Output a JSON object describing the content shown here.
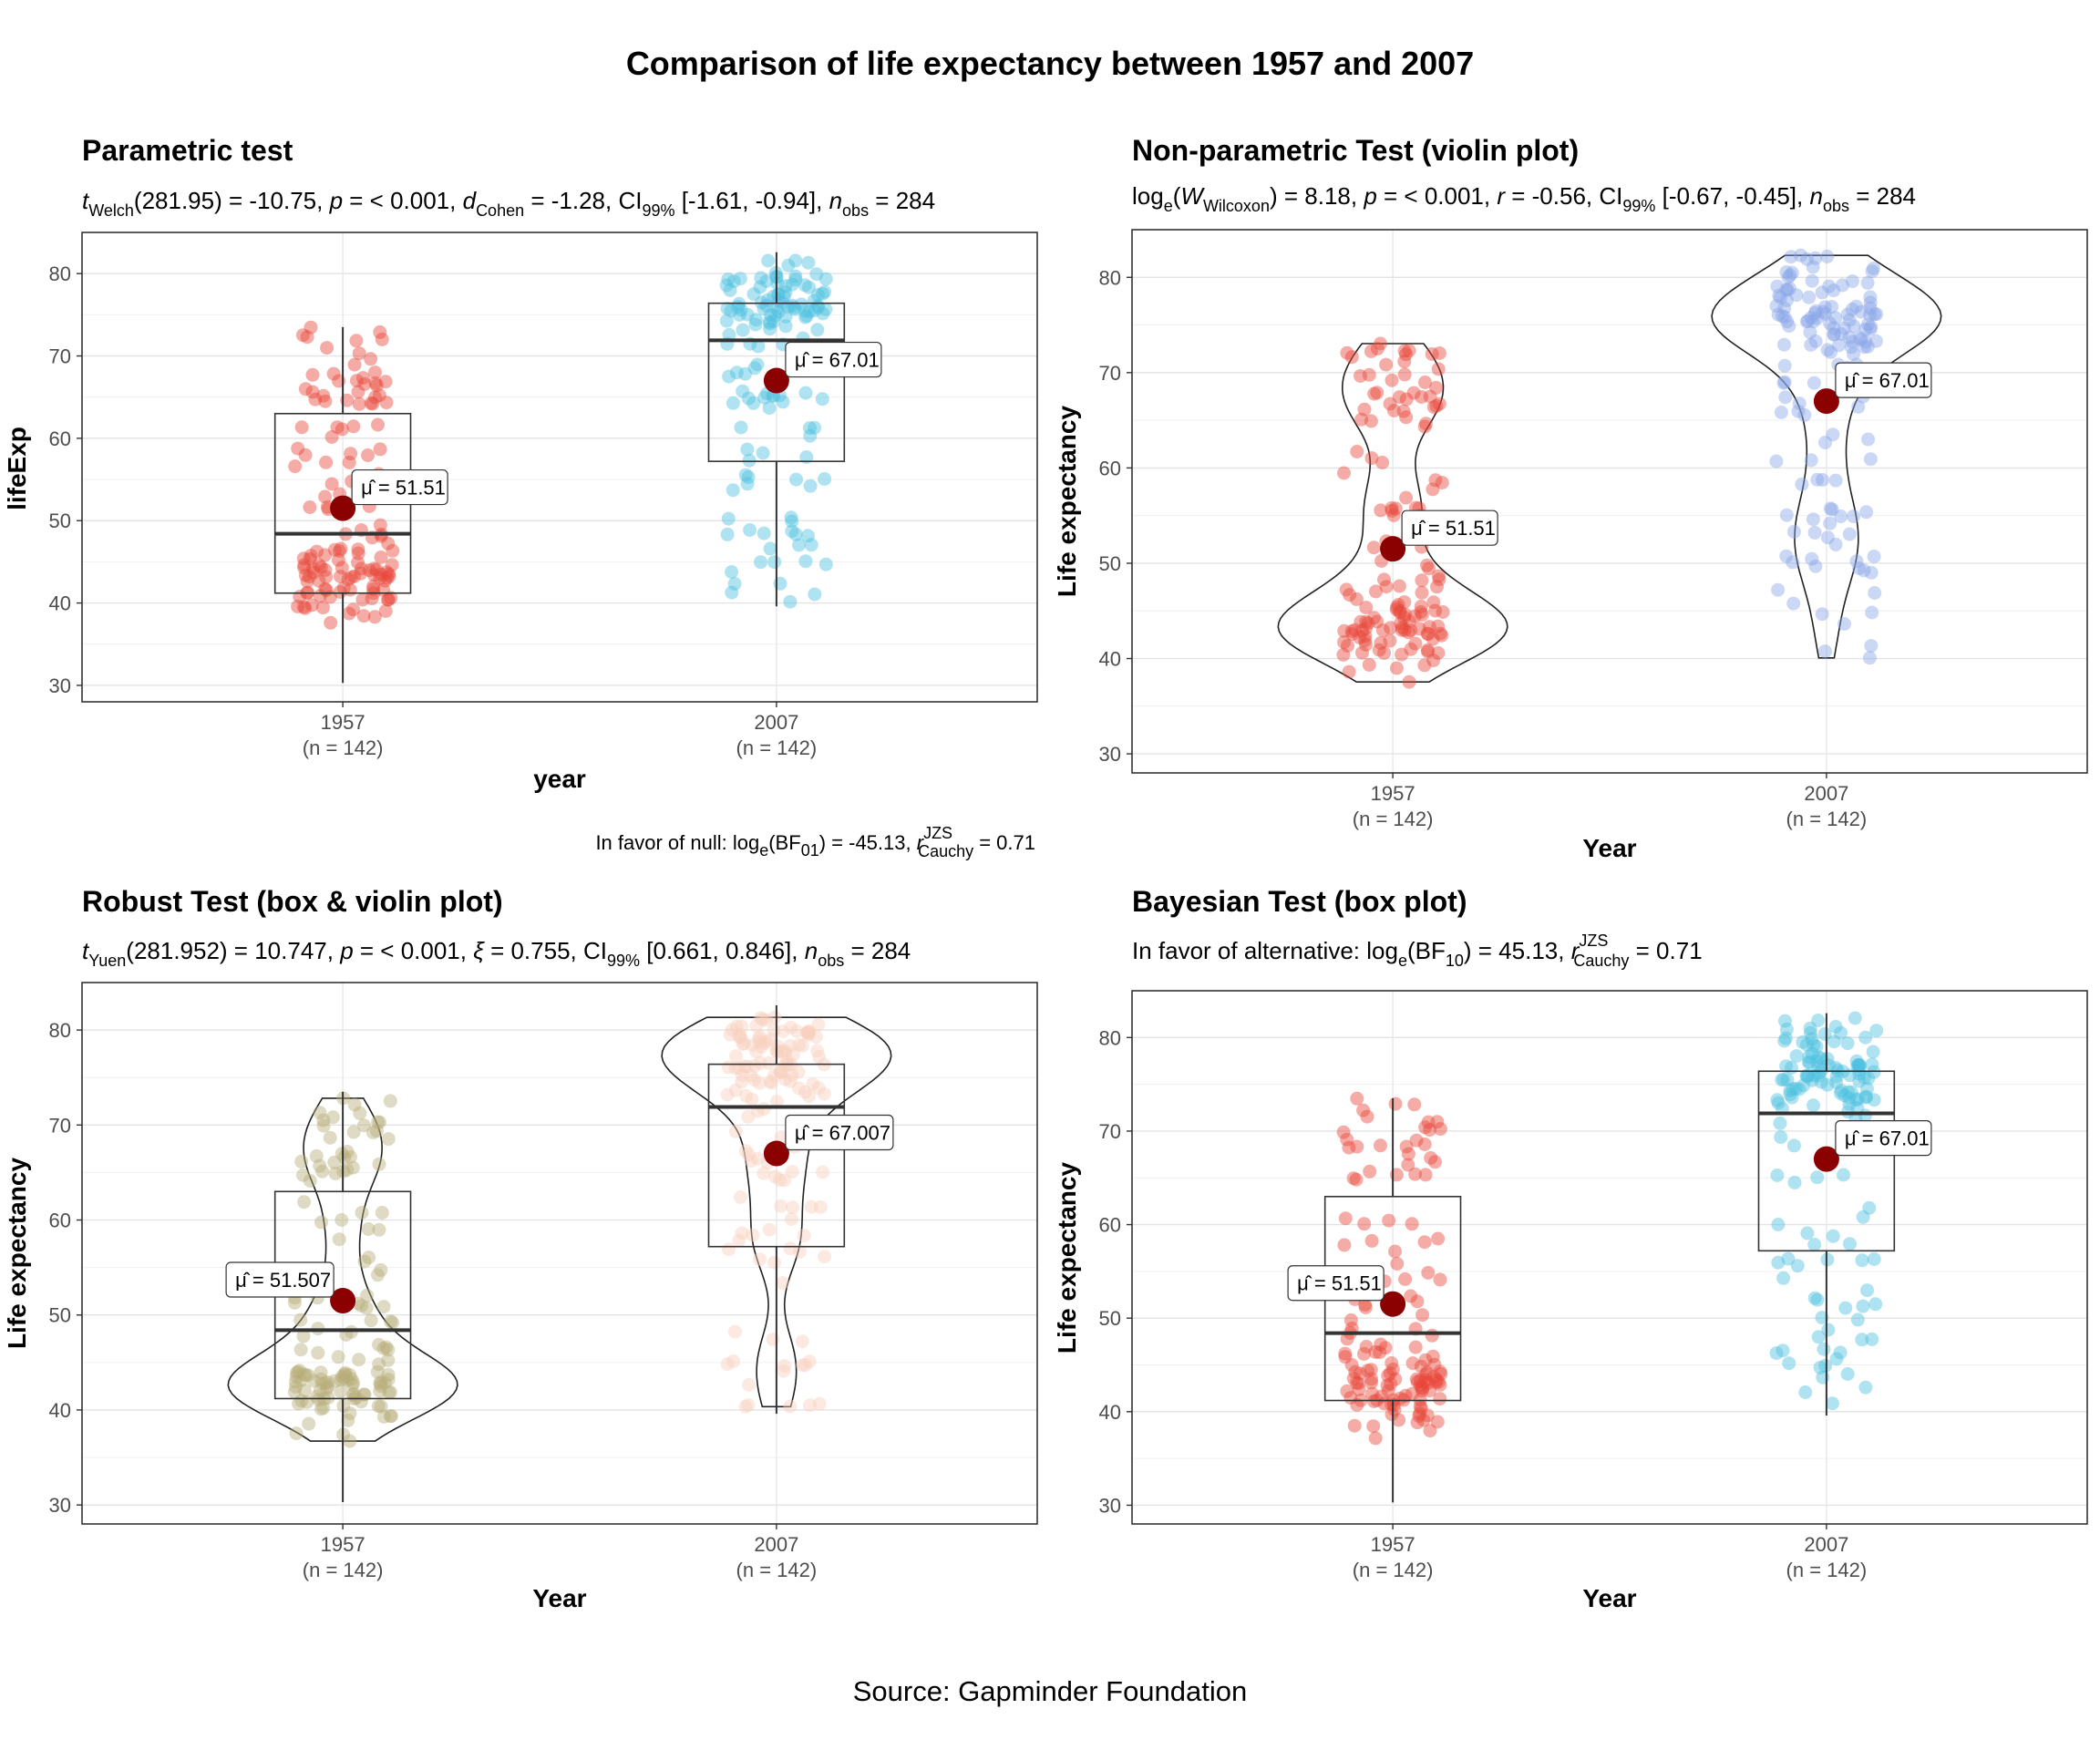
{
  "title": "Comparison of life expectancy between 1957 and 2007",
  "caption": "Source: Gapminder Foundation",
  "colors": {
    "red": "#E8473A",
    "cyan": "#4EC1E0",
    "periwinkle": "#8AA6E8",
    "olive": "#B7AE7A",
    "peach": "#F8D1BE",
    "mean_point": "#8B0000"
  },
  "chart_data": [
    {
      "type": "box",
      "title": "Parametric test",
      "subtitle": "t_Welch(281.95) = -10.75, p = < 0.001, d_Cohen = -1.28, CI99% [-1.61, -0.94], n_obs = 284",
      "subtitle_parts": {
        "stat": "Welch",
        "df": "(281.95) = -10.75, ",
        "p": "p",
        "p_text": " = < 0.001, ",
        "es": "d",
        "es_sub": "Cohen",
        "es_text": " = -1.28, CI",
        "ci_sub": "99%",
        "ci_text": " [-1.61, -0.94], ",
        "n": "n",
        "n_sub": "obs",
        "n_text": " = 284"
      },
      "xlabel": "year",
      "ylabel": "lifeExp",
      "ylim": [
        28,
        85
      ],
      "y_ticks": [
        30,
        40,
        50,
        60,
        70,
        80
      ],
      "categories": [
        "1957",
        "2007"
      ],
      "counts": [
        "(n = 142)",
        "(n = 142)"
      ],
      "colors": [
        "red",
        "cyan"
      ],
      "box_stats": [
        {
          "min": 30.3,
          "q1": 41.2,
          "median": 48.4,
          "q3": 63.0,
          "max": 73.5
        },
        {
          "min": 39.6,
          "q1": 57.2,
          "median": 71.9,
          "q3": 76.4,
          "max": 82.6
        }
      ],
      "means": [
        51.51,
        67.01
      ],
      "mean_labels": [
        "51.51",
        "67.01"
      ],
      "violin": false,
      "caption_note": "In favor of null: log_e(BF01) = -45.13, r_Cauchy^JZS = 0.71",
      "note_parts": {
        "pre": "In favor of null: log",
        "e": "e",
        "mid": "(BF",
        "bf": "01",
        "post1": ") = -45.13, ",
        "r": "r",
        "jzs": "JZS",
        "cauchy": "Cauchy",
        "post2": " = 0.71"
      }
    },
    {
      "type": "violin",
      "title": "Non-parametric Test (violin plot)",
      "subtitle": "log_e(W_Wilcoxon) = 8.18, p = < 0.001, r = -0.56, CI99% [-0.67, -0.45], n_obs = 284",
      "subtitle_parts": {
        "pre": "log",
        "e": "e",
        "w": "W",
        "w_sub": "Wilcoxon",
        "w_text": ") = 8.18, ",
        "p": "p",
        "p_text": " = < 0.001, ",
        "es": "r",
        "es_text": " = -0.56, CI",
        "ci_sub": "99%",
        "ci_text": " [-0.67, -0.45], ",
        "n": "n",
        "n_sub": "obs",
        "n_text": " = 284"
      },
      "xlabel": "Year",
      "ylabel": "Life expectancy",
      "ylim": [
        28,
        85
      ],
      "y_ticks": [
        30,
        40,
        50,
        60,
        70,
        80
      ],
      "categories": [
        "1957",
        "2007"
      ],
      "counts": [
        "(n = 142)",
        "(n = 142)"
      ],
      "colors": [
        "red",
        "periwinkle"
      ],
      "means": [
        51.51,
        67.01
      ],
      "mean_labels": [
        "51.51",
        "67.01"
      ],
      "violin": true
    },
    {
      "type": "box-violin",
      "title": "Robust Test (box & violin plot)",
      "subtitle": "t_Yuen(281.952) = 10.747, p = < 0.001, xi = 0.755, CI99% [0.661, 0.846], n_obs = 284",
      "subtitle_parts": {
        "stat": "Yuen",
        "df": "(281.952) = 10.747, ",
        "p": "p",
        "p_text": " = < 0.001, ",
        "es": "ξ",
        "es_text": " = 0.755, CI",
        "ci_sub": "99%",
        "ci_text": " [0.661, 0.846], ",
        "n": "n",
        "n_sub": "obs",
        "n_text": " = 284"
      },
      "xlabel": "Year",
      "ylabel": "Life expectancy",
      "ylim": [
        28,
        85
      ],
      "y_ticks": [
        30,
        40,
        50,
        60,
        70,
        80
      ],
      "categories": [
        "1957",
        "2007"
      ],
      "counts": [
        "(n = 142)",
        "(n = 142)"
      ],
      "colors": [
        "olive",
        "peach"
      ],
      "box_stats": [
        {
          "min": 30.3,
          "q1": 41.2,
          "median": 48.4,
          "q3": 63.0,
          "max": 73.5
        },
        {
          "min": 39.6,
          "q1": 57.2,
          "median": 71.9,
          "q3": 76.4,
          "max": 82.6
        }
      ],
      "means": [
        51.507,
        67.007
      ],
      "mean_labels": [
        "51.507",
        "67.007"
      ],
      "violin": true
    },
    {
      "type": "box",
      "title": "Bayesian Test (box plot)",
      "subtitle": "In favor of alternative: log_e(BF10) = 45.13, r_Cauchy^JZS = 0.71",
      "subtitle_parts": {
        "pre": "In favor of alternative: log",
        "e": "e",
        "mid": "(BF",
        "bf": "10",
        "post1": ") = 45.13, ",
        "r": "r",
        "jzs": "JZS",
        "cauchy": "Cauchy",
        "post2": " = 0.71"
      },
      "xlabel": "Year",
      "ylabel": "Life expectancy",
      "ylim": [
        28,
        85
      ],
      "y_ticks": [
        30,
        40,
        50,
        60,
        70,
        80
      ],
      "categories": [
        "1957",
        "2007"
      ],
      "counts": [
        "(n = 142)",
        "(n = 142)"
      ],
      "colors": [
        "red",
        "cyan"
      ],
      "box_stats": [
        {
          "min": 30.3,
          "q1": 41.2,
          "median": 48.4,
          "q3": 63.0,
          "max": 73.5
        },
        {
          "min": 39.6,
          "q1": 57.2,
          "median": 71.9,
          "q3": 76.4,
          "max": 82.6
        }
      ],
      "means": [
        51.51,
        67.01
      ],
      "mean_labels": [
        "51.51",
        "67.01"
      ],
      "violin": false
    }
  ]
}
